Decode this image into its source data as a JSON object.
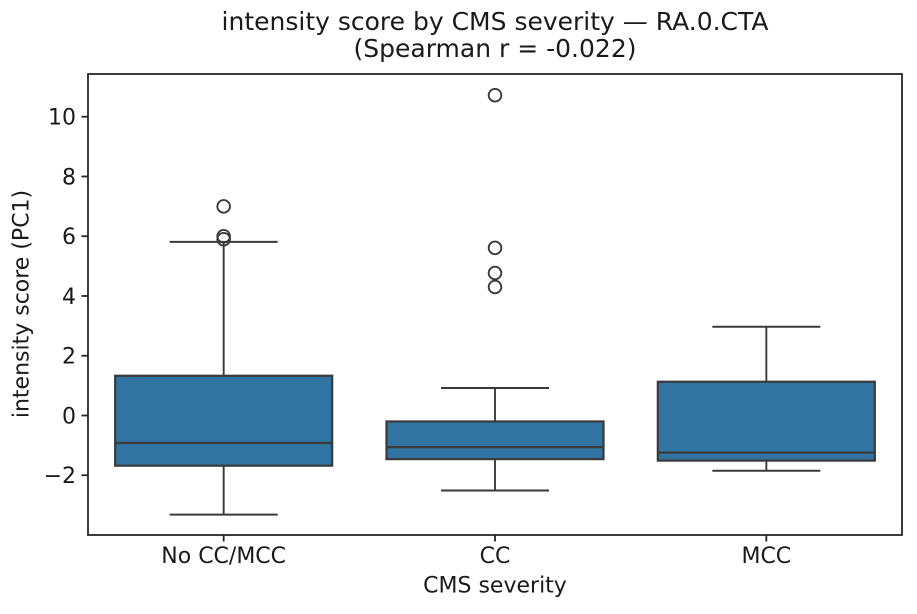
{
  "chart_data": {
    "type": "boxplot",
    "title_lines": [
      "intensity score by CMS severity — RA.0.CTA",
      "(Spearman r = -0.022)"
    ],
    "xlabel": "CMS severity",
    "ylabel": "intensity score (PC1)",
    "categories": [
      "No CC/MCC",
      "CC",
      "MCC"
    ],
    "ylim": [
      -4.0,
      11.43
    ],
    "yticks": [
      -2,
      0,
      2,
      4,
      6,
      8,
      10
    ],
    "ytick_labels": [
      "−2",
      "0",
      "2",
      "4",
      "6",
      "8",
      "10"
    ],
    "grid": false,
    "legend": null,
    "colors": {
      "box_fill": "#3274a1",
      "box_edge": "#3a3a3a",
      "axis": "#262626",
      "text": "#1a1a1a"
    },
    "series": [
      {
        "name": "No CC/MCC",
        "whisker_low": -3.32,
        "q1": -1.68,
        "median": -0.92,
        "q3": 1.33,
        "whisker_high": 5.81,
        "outliers": [
          5.9,
          6.0,
          7.0
        ]
      },
      {
        "name": "CC",
        "whisker_low": -2.51,
        "q1": -1.46,
        "median": -1.06,
        "q3": -0.2,
        "whisker_high": 0.92,
        "outliers": [
          4.3,
          4.77,
          5.61,
          10.72
        ]
      },
      {
        "name": "MCC",
        "whisker_low": -1.85,
        "q1": -1.51,
        "median": -1.24,
        "q3": 1.13,
        "whisker_high": 2.97,
        "outliers": []
      }
    ]
  }
}
